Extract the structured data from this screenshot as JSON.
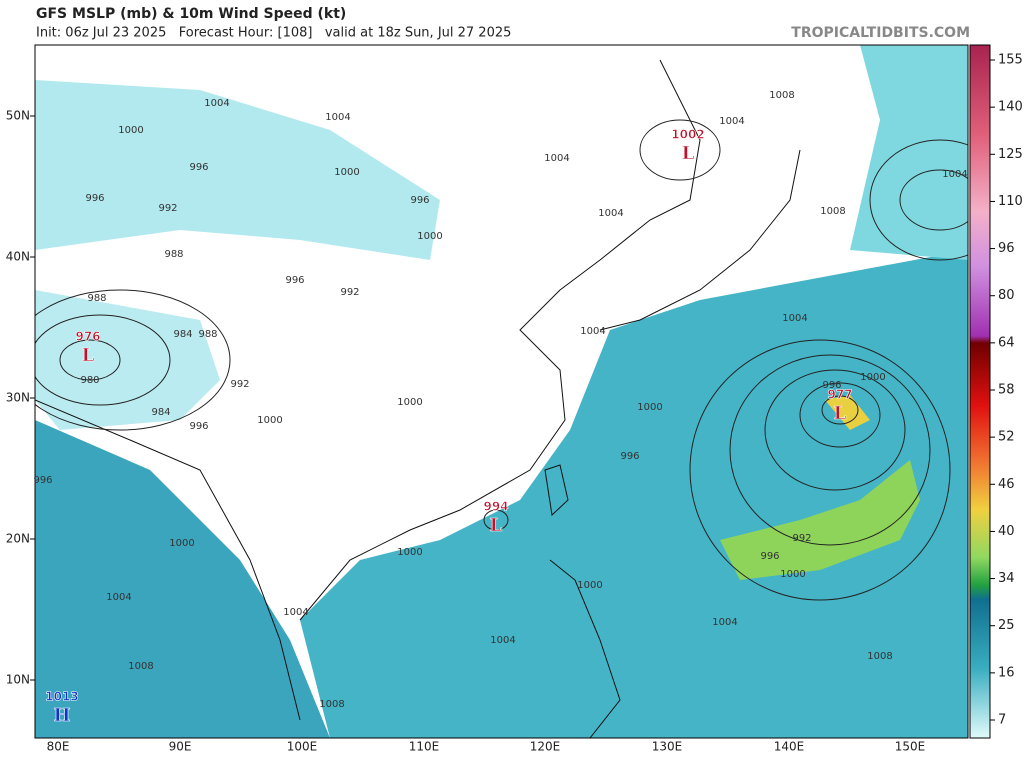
{
  "header": {
    "title": "GFS MSLP (mb) & 10m Wind Speed (kt)",
    "subtitle": "Init: 06z Jul 23 2025   Forecast Hour: [108]   valid at 18z Sun, Jul 27 2025",
    "credit": "TROPICALTIDBITS.COM"
  },
  "map": {
    "lat_labels": [
      "50N",
      "40N",
      "30N",
      "20N",
      "10N"
    ],
    "lon_labels": [
      "80E",
      "90E",
      "100E",
      "110E",
      "120E",
      "130E",
      "140E",
      "150E"
    ]
  },
  "colorbar": {
    "ticks": [
      155,
      140,
      125,
      110,
      96,
      80,
      64,
      58,
      52,
      46,
      40,
      34,
      25,
      16,
      7
    ]
  },
  "pressure_centers": [
    {
      "kind": "L",
      "value": 976
    },
    {
      "kind": "L",
      "value": 1002
    },
    {
      "kind": "L",
      "value": 994
    },
    {
      "kind": "L",
      "value": 977
    },
    {
      "kind": "H",
      "value": 1013
    }
  ],
  "isobar_labels": [
    1004,
    1000,
    1004,
    996,
    1000,
    996,
    992,
    996,
    1000,
    988,
    996,
    992,
    988,
    984,
    988,
    980,
    992,
    984,
    996,
    1000,
    1000,
    996,
    1000,
    1004,
    1008,
    1008,
    1004,
    1000,
    1004,
    1000,
    1000,
    996,
    1004,
    1004,
    1004,
    1004,
    1008,
    1008,
    1004,
    1004,
    1000,
    996,
    1000,
    996,
    992,
    1004,
    1008
  ]
}
